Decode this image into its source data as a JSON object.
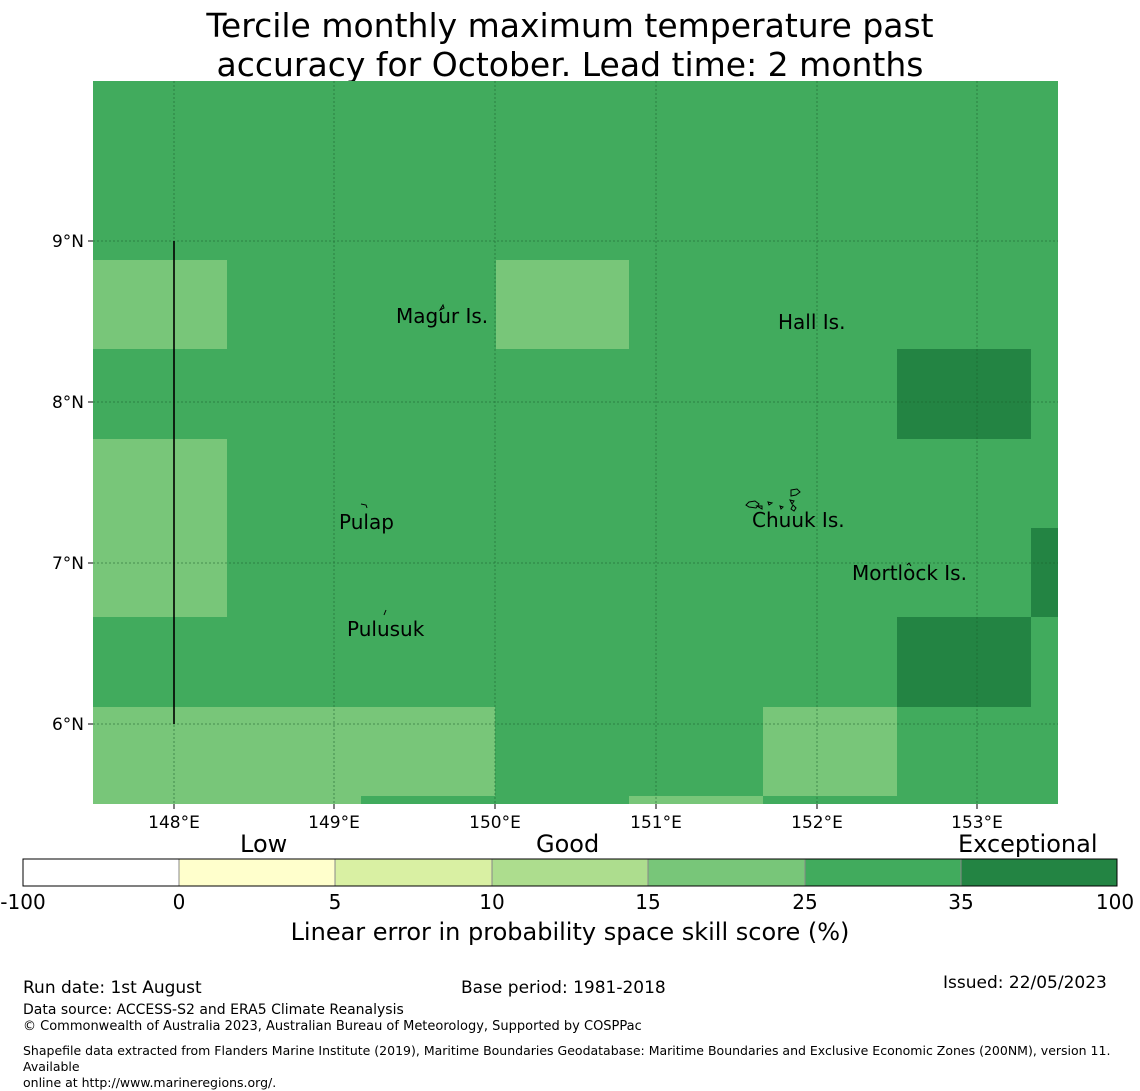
{
  "title_line1": "Tercile monthly maximum temperature past",
  "title_line2": "accuracy for October. Lead time: 2 months",
  "map": {
    "lon_range": [
      147.5,
      153.5
    ],
    "lat_range": [
      5.5,
      10.0
    ],
    "lon_ticks": [
      "148°E",
      "149°E",
      "150°E",
      "151°E",
      "152°E",
      "153°E"
    ],
    "lat_ticks": [
      "9°N",
      "8°N",
      "7°N",
      "6°N"
    ],
    "places": [
      {
        "name": "Magur Is.",
        "key": "magur"
      },
      {
        "name": "Hall Is.",
        "key": "hall"
      },
      {
        "name": "Pulap",
        "key": "pulap"
      },
      {
        "name": "Chuuk Is.",
        "key": "chuuk"
      },
      {
        "name": "Mortlock Is.",
        "key": "mortlock"
      },
      {
        "name": "Pulusuk",
        "key": "pulusuk"
      }
    ],
    "background_category": "25-35",
    "cell_categories": [
      "15-25",
      "25-35",
      "35-100"
    ],
    "colors": {
      "15-25": "#78c679",
      "25-35": "#41ab5d",
      "35-100": "#238443"
    }
  },
  "colorbar": {
    "words": {
      "low": "Low",
      "good": "Good",
      "exceptional": "Exceptional"
    },
    "labels": [
      "-100",
      "0",
      "5",
      "10",
      "15",
      "25",
      "35",
      "100"
    ],
    "colors": [
      "#ffffff",
      "#ffffcc",
      "#d9f0a3",
      "#addd8e",
      "#78c679",
      "#41ab5d",
      "#238443"
    ],
    "title": "Linear error in probability space skill score (%)"
  },
  "footer": {
    "run_date": "Run date: 1st August",
    "base_period": "Base period: 1981-2018",
    "issued": "Issued: 22/05/2023",
    "data_source": "Data source: ACCESS-S2 and ERA5 Climate Reanalysis",
    "copyright": "© Commonwealth of Australia 2023, Australian Bureau of Meteorology, Supported by COSPPac",
    "shapefile_line1": "Shapefile data extracted from Flanders Marine Institute (2019), Maritime Boundaries Geodatabase: Maritime Boundaries and Exclusive Economic Zones (200NM), version 11. Available",
    "shapefile_line2": "online at http://www.marineregions.org/."
  }
}
